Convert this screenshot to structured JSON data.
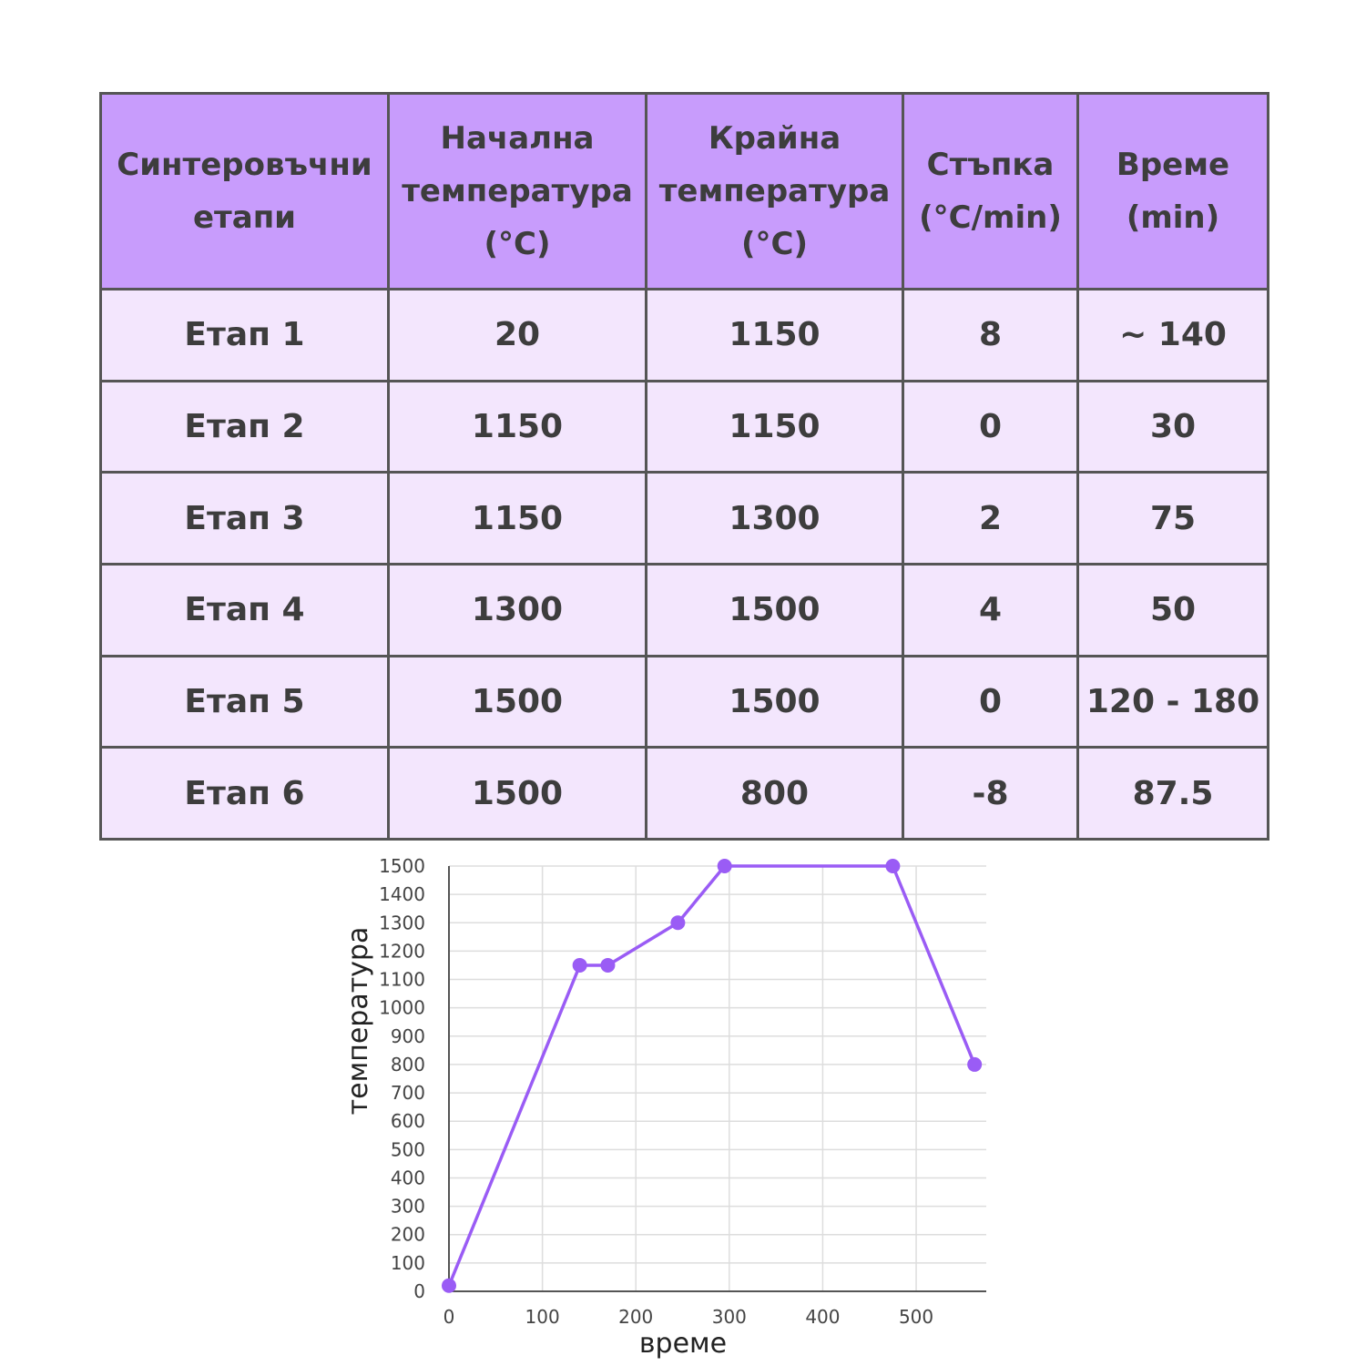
{
  "table": {
    "headers": [
      [
        "Синтеровъчни",
        "етапи"
      ],
      [
        "Начална",
        "температура",
        "(°C)"
      ],
      [
        "Крайна",
        "температура",
        "(°C)"
      ],
      [
        "Стъпка",
        "(°C/min)"
      ],
      [
        "Време",
        "(min)"
      ]
    ],
    "rows": [
      [
        "Етап 1",
        "20",
        "1150",
        "8",
        "~ 140"
      ],
      [
        "Етап 2",
        "1150",
        "1150",
        "0",
        "30"
      ],
      [
        "Етап 3",
        "1150",
        "1300",
        "2",
        "75"
      ],
      [
        "Етап 4",
        "1300",
        "1500",
        "4",
        "50"
      ],
      [
        "Етап 5",
        "1500",
        "1500",
        "0",
        "120 - 180"
      ],
      [
        "Етап 6",
        "1500",
        "800",
        "-8",
        "87.5"
      ]
    ]
  },
  "colors": {
    "header_bg": "#c89cfc",
    "cell_bg": "#f3e6fd",
    "border": "#555555",
    "series": "#9a5cf5",
    "grid": "#dddddd"
  },
  "chart_data": {
    "type": "line",
    "xlabel": "време",
    "ylabel": "температура",
    "xlim": [
      0,
      575
    ],
    "ylim": [
      0,
      1500
    ],
    "x_ticks": [
      0,
      100,
      200,
      300,
      400,
      500
    ],
    "y_ticks": [
      0,
      100,
      200,
      300,
      400,
      500,
      600,
      700,
      800,
      900,
      1000,
      1100,
      1200,
      1300,
      1400,
      1500
    ],
    "grid": true,
    "series": [
      {
        "points": [
          {
            "x": 0,
            "y": 20
          },
          {
            "x": 140,
            "y": 1150
          },
          {
            "x": 170,
            "y": 1150
          },
          {
            "x": 245,
            "y": 1300
          },
          {
            "x": 295,
            "y": 1500
          },
          {
            "x": 475,
            "y": 1500
          },
          {
            "x": 562.5,
            "y": 800
          }
        ]
      }
    ]
  }
}
